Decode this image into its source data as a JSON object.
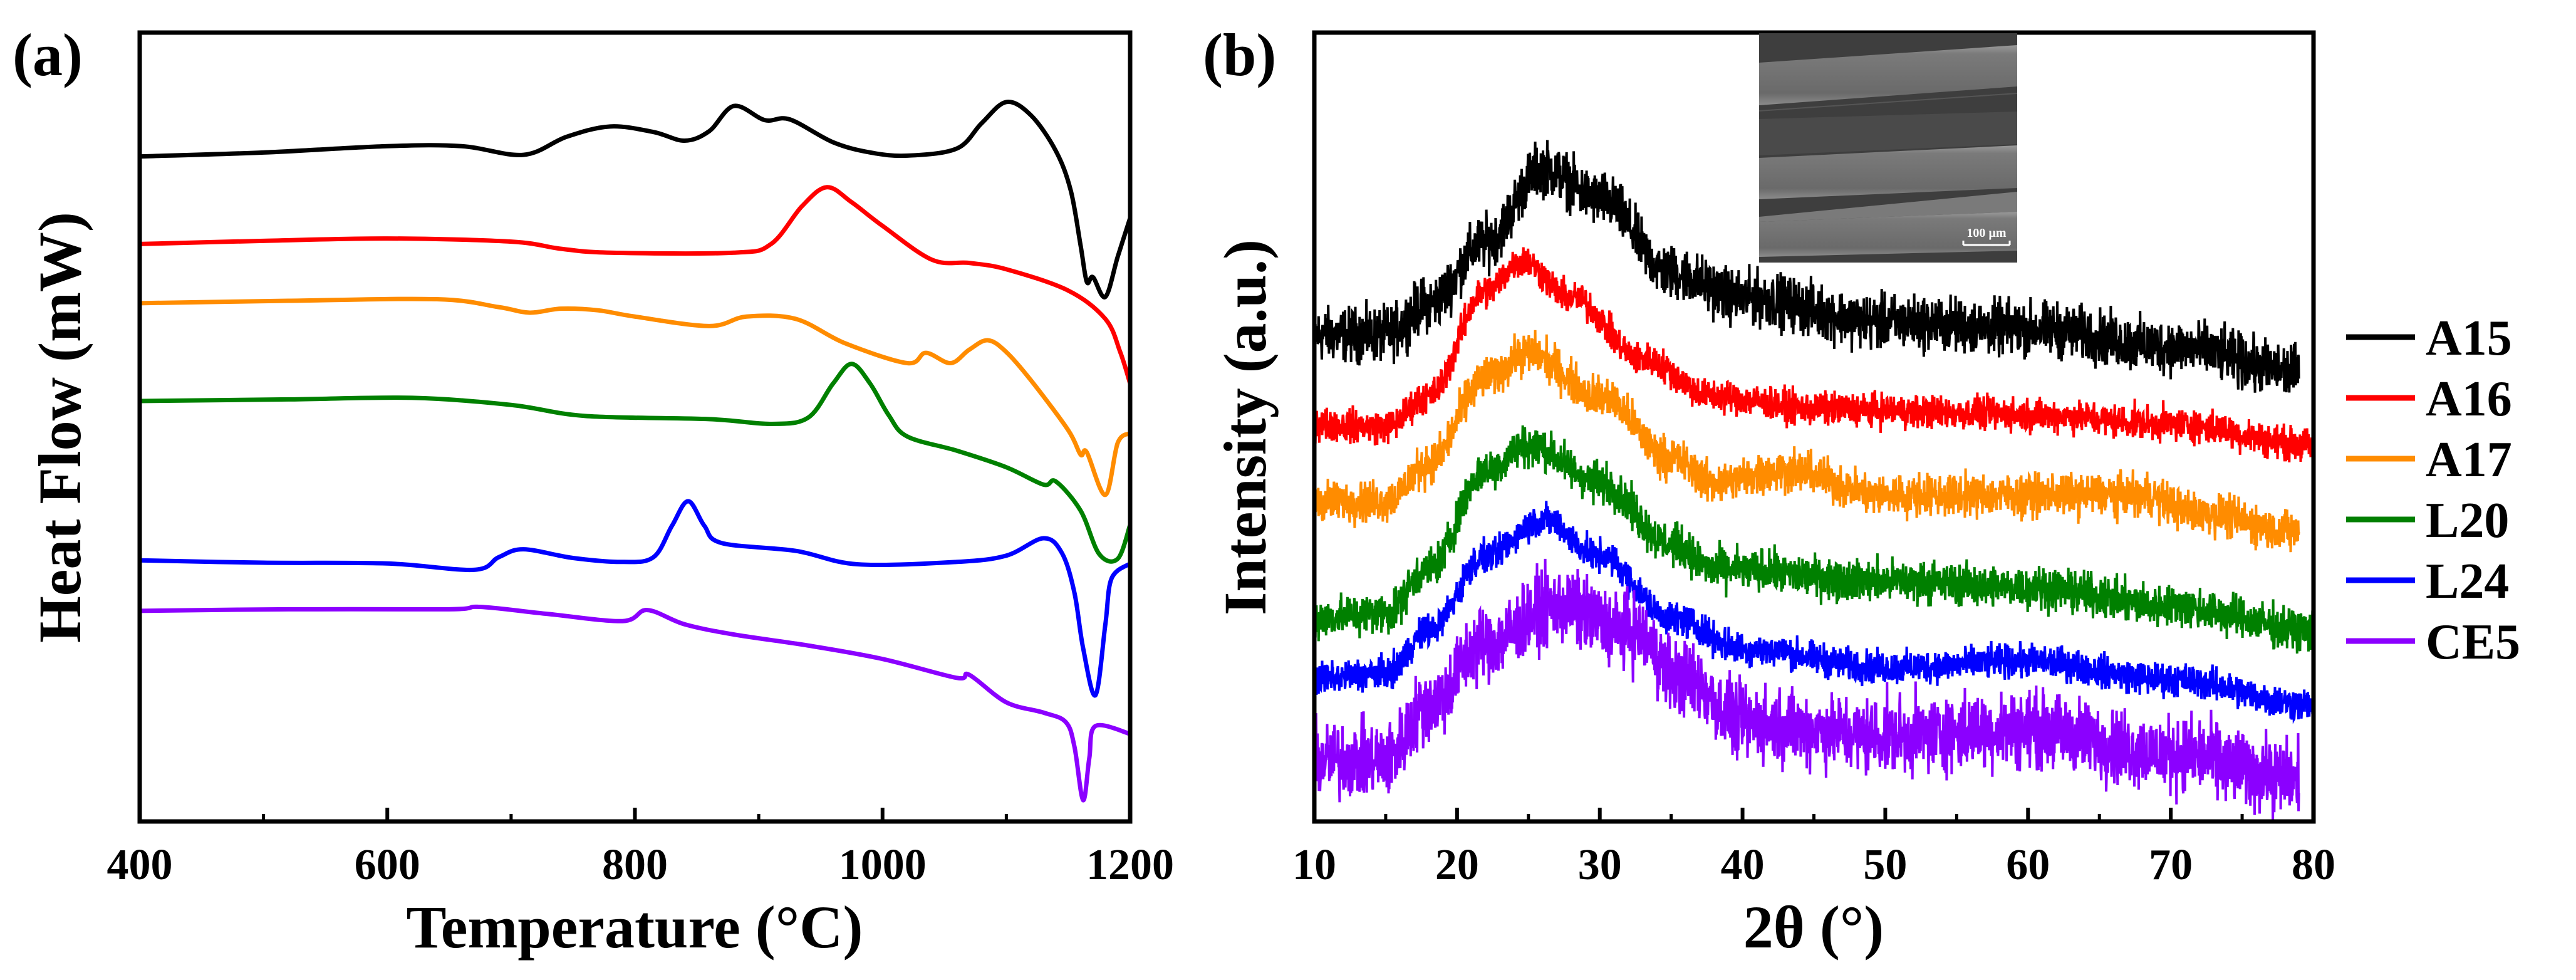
{
  "chart_data": [
    {
      "type": "line",
      "panel_label": "(a)",
      "xlabel": "Temperature (°C)",
      "ylabel": "Heat Flow (mW)",
      "xlim": [
        400,
        1200
      ],
      "ylim": [
        0,
        100
      ],
      "xticks": [
        "400",
        "600",
        "800",
        "1000",
        "1200"
      ],
      "yticks_shown": false,
      "grid": false,
      "series": [
        {
          "name": "A15",
          "color": "#000000",
          "points": [
            [
              400,
              84.3
            ],
            [
              500,
              84.8
            ],
            [
              600,
              85.6
            ],
            [
              660,
              85.6
            ],
            [
              710,
              84.5
            ],
            [
              745,
              86.8
            ],
            [
              780,
              88.1
            ],
            [
              815,
              87.4
            ],
            [
              840,
              86.3
            ],
            [
              860,
              87.5
            ],
            [
              880,
              90.7
            ],
            [
              905,
              88.9
            ],
            [
              925,
              89.0
            ],
            [
              960,
              86.1
            ],
            [
              990,
              84.8
            ],
            [
              1020,
              84.4
            ],
            [
              1060,
              85.3
            ],
            [
              1080,
              88.5
            ],
            [
              1100,
              91.2
            ],
            [
              1120,
              89.5
            ],
            [
              1140,
              85
            ],
            [
              1152,
              80
            ],
            [
              1160,
              73
            ],
            [
              1165,
              68.4
            ],
            [
              1170,
              69
            ],
            [
              1180,
              66.5
            ],
            [
              1190,
              71.6
            ],
            [
              1200,
              76.5
            ]
          ]
        },
        {
          "name": "A16",
          "color": "#ff0000",
          "points": [
            [
              400,
              73.2
            ],
            [
              500,
              73.6
            ],
            [
              600,
              73.9
            ],
            [
              700,
              73.5
            ],
            [
              740,
              72.6
            ],
            [
              780,
              72.1
            ],
            [
              880,
              72.1
            ],
            [
              910,
              73.2
            ],
            [
              935,
              78
            ],
            [
              955,
              80.4
            ],
            [
              975,
              78.5
            ],
            [
              1000,
              75.5
            ],
            [
              1040,
              71.2
            ],
            [
              1070,
              70.8
            ],
            [
              1100,
              70.0
            ],
            [
              1150,
              67.3
            ],
            [
              1180,
              63.7
            ],
            [
              1192,
              59.5
            ],
            [
              1200,
              55.5
            ]
          ]
        },
        {
          "name": "A17",
          "color": "#ff8c00",
          "points": [
            [
              400,
              65.7
            ],
            [
              520,
              66.0
            ],
            [
              640,
              66.2
            ],
            [
              690,
              65.2
            ],
            [
              715,
              64.5
            ],
            [
              740,
              65.0
            ],
            [
              770,
              64.8
            ],
            [
              800,
              64.0
            ],
            [
              860,
              62.8
            ],
            [
              890,
              64.0
            ],
            [
              930,
              63.7
            ],
            [
              970,
              60.6
            ],
            [
              1020,
              58.1
            ],
            [
              1035,
              59.4
            ],
            [
              1055,
              58.1
            ],
            [
              1070,
              59.8
            ],
            [
              1085,
              61.0
            ],
            [
              1100,
              59.5
            ],
            [
              1120,
              55.9
            ],
            [
              1150,
              49.6
            ],
            [
              1160,
              46.5
            ],
            [
              1165,
              46.8
            ],
            [
              1180,
              41.4
            ],
            [
              1190,
              48.0
            ],
            [
              1200,
              49.2
            ]
          ]
        },
        {
          "name": "L20",
          "color": "#008000",
          "points": [
            [
              400,
              53.3
            ],
            [
              520,
              53.5
            ],
            [
              620,
              53.7
            ],
            [
              700,
              52.8
            ],
            [
              760,
              51.4
            ],
            [
              860,
              51.0
            ],
            [
              910,
              50.4
            ],
            [
              940,
              51.2
            ],
            [
              960,
              55.5
            ],
            [
              975,
              58.0
            ],
            [
              990,
              55.5
            ],
            [
              1005,
              51.5
            ],
            [
              1020,
              48.8
            ],
            [
              1060,
              47.0
            ],
            [
              1100,
              44.9
            ],
            [
              1130,
              42.7
            ],
            [
              1140,
              43.1
            ],
            [
              1160,
              39.4
            ],
            [
              1175,
              33.9
            ],
            [
              1190,
              33.3
            ],
            [
              1200,
              37.6
            ]
          ]
        },
        {
          "name": "L24",
          "color": "#0000ff",
          "points": [
            [
              400,
              33.1
            ],
            [
              500,
              32.8
            ],
            [
              600,
              32.7
            ],
            [
              670,
              31.9
            ],
            [
              690,
              33.5
            ],
            [
              710,
              34.5
            ],
            [
              750,
              33.4
            ],
            [
              790,
              32.9
            ],
            [
              815,
              33.5
            ],
            [
              830,
              37.5
            ],
            [
              843,
              40.6
            ],
            [
              856,
              37.5
            ],
            [
              870,
              35.3
            ],
            [
              930,
              34.3
            ],
            [
              980,
              32.6
            ],
            [
              1060,
              32.9
            ],
            [
              1100,
              33.7
            ],
            [
              1130,
              35.9
            ],
            [
              1145,
              34.0
            ],
            [
              1155,
              29.0
            ],
            [
              1162,
              22.0
            ],
            [
              1172,
              16.0
            ],
            [
              1180,
              25.0
            ],
            [
              1185,
              30.8
            ],
            [
              1200,
              32.7
            ]
          ]
        },
        {
          "name": "CE5",
          "color": "#8b00ff",
          "points": [
            [
              400,
              26.7
            ],
            [
              520,
              26.9
            ],
            [
              650,
              26.9
            ],
            [
              675,
              27.2
            ],
            [
              730,
              26.3
            ],
            [
              790,
              25.4
            ],
            [
              810,
              26.8
            ],
            [
              840,
              25.0
            ],
            [
              880,
              23.7
            ],
            [
              940,
              22.3
            ],
            [
              1000,
              20.6
            ],
            [
              1060,
              18.2
            ],
            [
              1070,
              18.6
            ],
            [
              1100,
              15.1
            ],
            [
              1130,
              13.8
            ],
            [
              1148,
              12.6
            ],
            [
              1155,
              9.5
            ],
            [
              1162,
              2.7
            ],
            [
              1167,
              8
            ],
            [
              1172,
              12.1
            ],
            [
              1200,
              11.1
            ]
          ]
        }
      ]
    },
    {
      "type": "line",
      "panel_label": "(b)",
      "xlabel": "2θ (°)",
      "ylabel": "Intensity (a.u.)",
      "xlim": [
        10,
        80
      ],
      "ylim": [
        0,
        100
      ],
      "xticks": [
        "10",
        "20",
        "30",
        "40",
        "50",
        "60",
        "70",
        "80"
      ],
      "yticks_shown": false,
      "grid": false,
      "legend_position": "right",
      "inset": {
        "description_label": "SEM image",
        "scale_bar": "100 µm"
      },
      "series": [
        {
          "name": "A15",
          "color": "#000000",
          "noise": 2.6,
          "points": [
            [
              10,
              61.7
            ],
            [
              15,
              61.7
            ],
            [
              18,
              65.6
            ],
            [
              22,
              73.4
            ],
            [
              26,
              82.8
            ],
            [
              30,
              78.9
            ],
            [
              35,
              69.5
            ],
            [
              40,
              66.4
            ],
            [
              50,
              63.3
            ],
            [
              60,
              62.5
            ],
            [
              70,
              60.2
            ],
            [
              79,
              57.0
            ]
          ]
        },
        {
          "name": "A16",
          "color": "#ff0000",
          "noise": 1.6,
          "points": [
            [
              10,
              50.4
            ],
            [
              15,
              50.0
            ],
            [
              18,
              53.9
            ],
            [
              22,
              67.2
            ],
            [
              24.5,
              71.1
            ],
            [
              28,
              66.4
            ],
            [
              33,
              58.6
            ],
            [
              38,
              53.9
            ],
            [
              45,
              52.3
            ],
            [
              60,
              51.6
            ],
            [
              70,
              50.4
            ],
            [
              80,
              47.7
            ]
          ]
        },
        {
          "name": "A17",
          "color": "#ff8c00",
          "noise": 2.0,
          "points": [
            [
              10,
              40.6
            ],
            [
              15,
              40.6
            ],
            [
              18,
              45.3
            ],
            [
              22,
              56.3
            ],
            [
              25,
              59.4
            ],
            [
              30,
              53.9
            ],
            [
              35,
              46.1
            ],
            [
              38,
              43.0
            ],
            [
              43,
              44.5
            ],
            [
              50,
              41.4
            ],
            [
              60,
              41.4
            ],
            [
              68,
              41.4
            ],
            [
              72,
              39.1
            ],
            [
              79,
              36.7
            ]
          ]
        },
        {
          "name": "L20",
          "color": "#008000",
          "noise": 2.0,
          "points": [
            [
              10,
              25.8
            ],
            [
              15,
              26.5
            ],
            [
              18,
              32.0
            ],
            [
              22,
              44.5
            ],
            [
              25,
              47.7
            ],
            [
              30,
              43.0
            ],
            [
              35,
              35.2
            ],
            [
              38,
              32.0
            ],
            [
              50,
              30.5
            ],
            [
              60,
              29.7
            ],
            [
              70,
              27.3
            ],
            [
              80,
              24.2
            ]
          ]
        },
        {
          "name": "L24",
          "color": "#0000ff",
          "noise": 1.6,
          "points": [
            [
              10,
              18.0
            ],
            [
              15,
              18.8
            ],
            [
              18,
              24.2
            ],
            [
              22,
              33.6
            ],
            [
              26,
              38.3
            ],
            [
              30,
              33.6
            ],
            [
              35,
              25.8
            ],
            [
              40,
              21.9
            ],
            [
              50,
              19.5
            ],
            [
              60,
              20.3
            ],
            [
              70,
              18.0
            ],
            [
              80,
              14.8
            ]
          ]
        },
        {
          "name": "CE5",
          "color": "#8b00ff",
          "noise": 3.6,
          "points": [
            [
              10,
              7.8
            ],
            [
              15,
              7.8
            ],
            [
              18,
              14.8
            ],
            [
              22,
              22.7
            ],
            [
              27,
              27.3
            ],
            [
              32,
              24.2
            ],
            [
              36,
              18.0
            ],
            [
              40,
              12.5
            ],
            [
              50,
              10.9
            ],
            [
              60,
              11.7
            ],
            [
              70,
              8.6
            ],
            [
              79,
              5.5
            ]
          ]
        }
      ]
    }
  ]
}
